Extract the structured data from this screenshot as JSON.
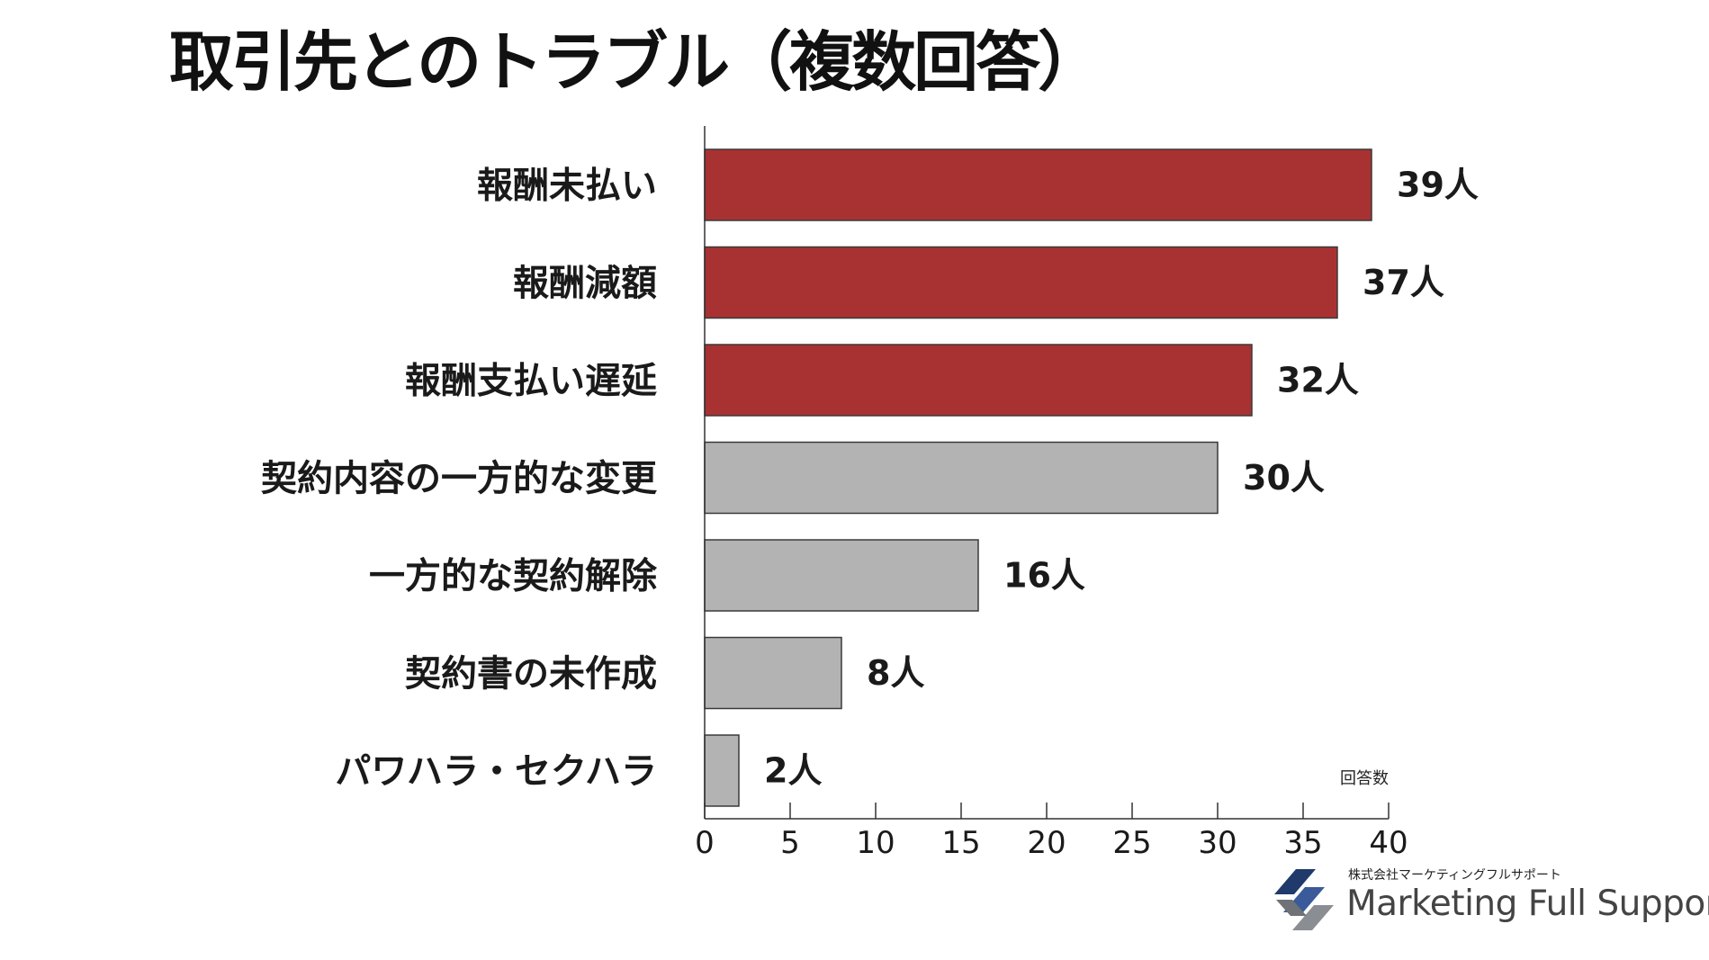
{
  "title": "取引先とのトラブル（複数回答）",
  "logo": {
    "company_jp": "株式会社マーケティングフルサポート",
    "company_en": "Marketing Full Support"
  },
  "chart_data": {
    "type": "bar",
    "orientation": "horizontal",
    "title": "取引先とのトラブル（複数回答）",
    "xlabel": "回答数",
    "ylabel": "",
    "categories": [
      "報酬未払い",
      "報酬減額",
      "報酬支払い遅延",
      "契約内容の一方的な変更",
      "一方的な契約解除",
      "契約書の未作成",
      "パワハラ・セクハラ"
    ],
    "values": [
      39,
      37,
      32,
      30,
      16,
      8,
      2
    ],
    "value_labels": [
      "39人",
      "37人",
      "32人",
      "30人",
      "16人",
      "8人",
      "2人"
    ],
    "bar_colors": [
      "#a83232",
      "#a83232",
      "#a83232",
      "#b3b3b4",
      "#b3b3b4",
      "#b3b3b4",
      "#b3b3b4"
    ],
    "xlim": [
      0,
      40
    ],
    "xticks": [
      "0",
      "5",
      "10",
      "15",
      "20",
      "25",
      "30",
      "35",
      "40"
    ],
    "grid": false,
    "legend": "none"
  }
}
